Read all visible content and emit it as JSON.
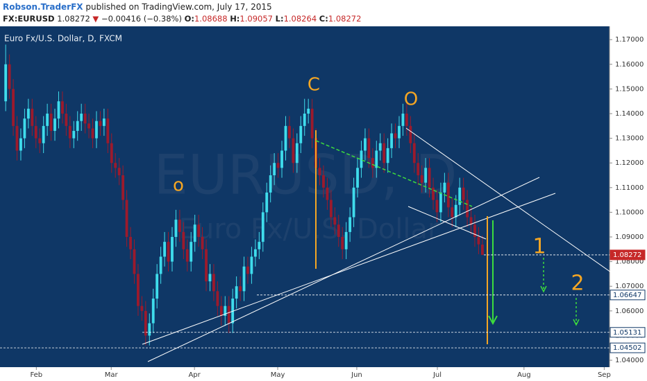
{
  "header": {
    "author": "Robson.TraderFX",
    "published": "published on TradingView.com, July 17, 2015",
    "symbol": "FX:EURUSD",
    "last": "1.08272",
    "arrow": "▼",
    "change": "−0.00416 (−0.38%)",
    "o_label": "O:",
    "o": "1.08688",
    "h_label": "H:",
    "h": "1.09057",
    "l_label": "L:",
    "l": "1.08264",
    "c_label": "C:",
    "c": "1.08272"
  },
  "chart_data": {
    "type": "candlestick",
    "title": "Euro Fx/U.S. Dollar, D, FXCM",
    "watermark": "EURUSD, D",
    "watermark_sub": "Euro Fx/U.S. Dollar",
    "up_color": "#3fdcec",
    "down_color": "#9c1a2c",
    "ylim": [
      1.0372,
      1.1754
    ],
    "yticks": [
      {
        "value": 1.04,
        "label": "1.04000"
      },
      {
        "value": 1.05,
        "label": "1.05000"
      },
      {
        "value": 1.06,
        "label": "1.06000"
      },
      {
        "value": 1.07,
        "label": "1.07000"
      },
      {
        "value": 1.08,
        "label": "1.08000"
      },
      {
        "value": 1.09,
        "label": "1.09000"
      },
      {
        "value": 1.1,
        "label": "1.10000"
      },
      {
        "value": 1.11,
        "label": "1.11000"
      },
      {
        "value": 1.12,
        "label": "1.12000"
      },
      {
        "value": 1.13,
        "label": "1.13000"
      },
      {
        "value": 1.14,
        "label": "1.14000"
      },
      {
        "value": 1.15,
        "label": "1.15000"
      },
      {
        "value": 1.16,
        "label": "1.16000"
      },
      {
        "value": 1.17,
        "label": "1.17000"
      }
    ],
    "xlim": [
      -1.5,
      159.6
    ],
    "xticks": [
      {
        "value": 8.1,
        "label": "Feb"
      },
      {
        "value": 27.9,
        "label": "Mar"
      },
      {
        "value": 49.9,
        "label": "Apr"
      },
      {
        "value": 71.9,
        "label": "May"
      },
      {
        "value": 92.8,
        "label": "Jun"
      },
      {
        "value": 114.1,
        "label": "Jul"
      },
      {
        "value": 137,
        "label": "Aug"
      },
      {
        "value": 158.2,
        "label": "Sep"
      }
    ],
    "open": [
      1.145,
      1.16,
      1.15,
      1.135,
      1.125,
      1.13,
      1.138,
      1.142,
      1.135,
      1.13,
      1.128,
      1.135,
      1.14,
      1.133,
      1.138,
      1.145,
      1.14,
      1.135,
      1.13,
      1.133,
      1.137,
      1.14,
      1.136,
      1.134,
      1.13,
      1.137,
      1.135,
      1.138,
      1.128,
      1.12,
      1.118,
      1.115,
      1.105,
      1.09,
      1.085,
      1.075,
      1.062,
      1.06,
      1.05,
      1.055,
      1.065,
      1.075,
      1.082,
      1.088,
      1.08,
      1.09,
      1.097,
      1.092,
      1.085,
      1.08,
      1.088,
      1.095,
      1.09,
      1.085,
      1.072,
      1.075,
      1.068,
      1.062,
      1.058,
      1.062,
      1.055,
      1.065,
      1.07,
      1.068,
      1.078,
      1.075,
      1.082,
      1.085,
      1.088,
      1.1,
      1.108,
      1.115,
      1.12,
      1.118,
      1.125,
      1.135,
      1.13,
      1.12,
      1.128,
      1.135,
      1.14,
      1.142,
      1.13,
      1.118,
      1.115,
      1.11,
      1.105,
      1.098,
      1.095,
      1.09,
      1.085,
      1.092,
      1.098,
      1.11,
      1.118,
      1.125,
      1.13,
      1.122,
      1.118,
      1.125,
      1.128,
      1.12,
      1.126,
      1.132,
      1.13,
      1.135,
      1.14,
      1.135,
      1.128,
      1.12,
      1.115,
      1.112,
      1.118,
      1.11,
      1.105,
      1.1,
      1.108,
      1.112,
      1.102,
      1.098,
      1.103,
      1.11,
      1.105,
      1.098,
      1.095,
      1.09,
      1.08688
    ],
    "high": [
      1.168,
      1.164,
      1.154,
      1.139,
      1.134,
      1.142,
      1.146,
      1.146,
      1.139,
      1.134,
      1.139,
      1.144,
      1.144,
      1.142,
      1.149,
      1.149,
      1.144,
      1.139,
      1.137,
      1.141,
      1.144,
      1.144,
      1.14,
      1.138,
      1.141,
      1.141,
      1.142,
      1.142,
      1.132,
      1.124,
      1.122,
      1.119,
      1.109,
      1.094,
      1.089,
      1.079,
      1.066,
      1.064,
      1.059,
      1.069,
      1.079,
      1.086,
      1.092,
      1.092,
      1.094,
      1.101,
      1.101,
      1.096,
      1.089,
      1.092,
      1.099,
      1.099,
      1.094,
      1.089,
      1.079,
      1.079,
      1.072,
      1.066,
      1.066,
      1.066,
      1.069,
      1.074,
      1.074,
      1.082,
      1.082,
      1.086,
      1.089,
      1.092,
      1.104,
      1.112,
      1.119,
      1.124,
      1.124,
      1.129,
      1.139,
      1.139,
      1.134,
      1.132,
      1.139,
      1.146,
      1.146,
      1.146,
      1.134,
      1.122,
      1.119,
      1.114,
      1.109,
      1.102,
      1.099,
      1.094,
      1.096,
      1.102,
      1.114,
      1.122,
      1.129,
      1.134,
      1.134,
      1.126,
      1.129,
      1.132,
      1.132,
      1.13,
      1.136,
      1.136,
      1.139,
      1.144,
      1.144,
      1.139,
      1.132,
      1.124,
      1.119,
      1.122,
      1.122,
      1.114,
      1.109,
      1.112,
      1.116,
      1.116,
      1.106,
      1.107,
      1.114,
      1.114,
      1.109,
      1.102,
      1.099,
      1.094,
      1.09057
    ],
    "low": [
      1.141,
      1.146,
      1.131,
      1.121,
      1.121,
      1.126,
      1.134,
      1.131,
      1.126,
      1.124,
      1.124,
      1.131,
      1.129,
      1.129,
      1.134,
      1.136,
      1.131,
      1.126,
      1.126,
      1.129,
      1.133,
      1.132,
      1.13,
      1.126,
      1.126,
      1.131,
      1.131,
      1.124,
      1.116,
      1.114,
      1.111,
      1.101,
      1.086,
      1.081,
      1.071,
      1.058,
      1.056,
      1.046,
      1.046,
      1.051,
      1.061,
      1.071,
      1.078,
      1.076,
      1.076,
      1.086,
      1.088,
      1.081,
      1.076,
      1.076,
      1.084,
      1.086,
      1.081,
      1.068,
      1.068,
      1.064,
      1.058,
      1.054,
      1.054,
      1.051,
      1.051,
      1.061,
      1.064,
      1.064,
      1.071,
      1.071,
      1.078,
      1.081,
      1.084,
      1.096,
      1.104,
      1.111,
      1.114,
      1.114,
      1.121,
      1.126,
      1.116,
      1.116,
      1.124,
      1.131,
      1.136,
      1.126,
      1.114,
      1.111,
      1.106,
      1.101,
      1.094,
      1.091,
      1.086,
      1.081,
      1.081,
      1.088,
      1.094,
      1.106,
      1.114,
      1.121,
      1.118,
      1.114,
      1.114,
      1.121,
      1.116,
      1.116,
      1.122,
      1.126,
      1.126,
      1.131,
      1.131,
      1.124,
      1.116,
      1.111,
      1.108,
      1.108,
      1.106,
      1.101,
      1.096,
      1.096,
      1.104,
      1.098,
      1.094,
      1.094,
      1.099,
      1.101,
      1.094,
      1.091,
      1.086,
      1.083,
      1.08264
    ],
    "close": [
      1.16,
      1.15,
      1.135,
      1.125,
      1.13,
      1.138,
      1.142,
      1.135,
      1.13,
      1.128,
      1.135,
      1.14,
      1.133,
      1.138,
      1.145,
      1.14,
      1.135,
      1.13,
      1.133,
      1.137,
      1.14,
      1.136,
      1.134,
      1.13,
      1.137,
      1.135,
      1.138,
      1.128,
      1.12,
      1.118,
      1.115,
      1.105,
      1.09,
      1.085,
      1.075,
      1.062,
      1.06,
      1.05,
      1.055,
      1.065,
      1.075,
      1.082,
      1.088,
      1.08,
      1.09,
      1.097,
      1.092,
      1.085,
      1.08,
      1.088,
      1.095,
      1.09,
      1.085,
      1.072,
      1.075,
      1.068,
      1.062,
      1.058,
      1.062,
      1.055,
      1.065,
      1.07,
      1.068,
      1.078,
      1.075,
      1.082,
      1.085,
      1.088,
      1.1,
      1.108,
      1.115,
      1.12,
      1.118,
      1.125,
      1.135,
      1.13,
      1.12,
      1.128,
      1.135,
      1.14,
      1.142,
      1.13,
      1.118,
      1.115,
      1.11,
      1.105,
      1.098,
      1.095,
      1.09,
      1.085,
      1.092,
      1.098,
      1.11,
      1.118,
      1.125,
      1.13,
      1.122,
      1.118,
      1.125,
      1.128,
      1.12,
      1.126,
      1.132,
      1.13,
      1.135,
      1.14,
      1.135,
      1.128,
      1.12,
      1.115,
      1.112,
      1.118,
      1.11,
      1.105,
      1.1,
      1.108,
      1.112,
      1.102,
      1.098,
      1.103,
      1.11,
      1.105,
      1.098,
      1.095,
      1.09,
      1.087,
      1.08272
    ],
    "levels": [
      {
        "value": 1.08272,
        "label": "1.08272",
        "color": "#c62828"
      },
      {
        "value": 1.06647,
        "label": "1.06647",
        "color": "#ffffff"
      },
      {
        "value": 1.05131,
        "label": "1.05131",
        "color": "#ffffff"
      },
      {
        "value": 1.04502,
        "label": "1.04502",
        "color": "#ffffff"
      }
    ],
    "annotations": [
      "o",
      "C",
      "O",
      "1",
      "2"
    ]
  }
}
